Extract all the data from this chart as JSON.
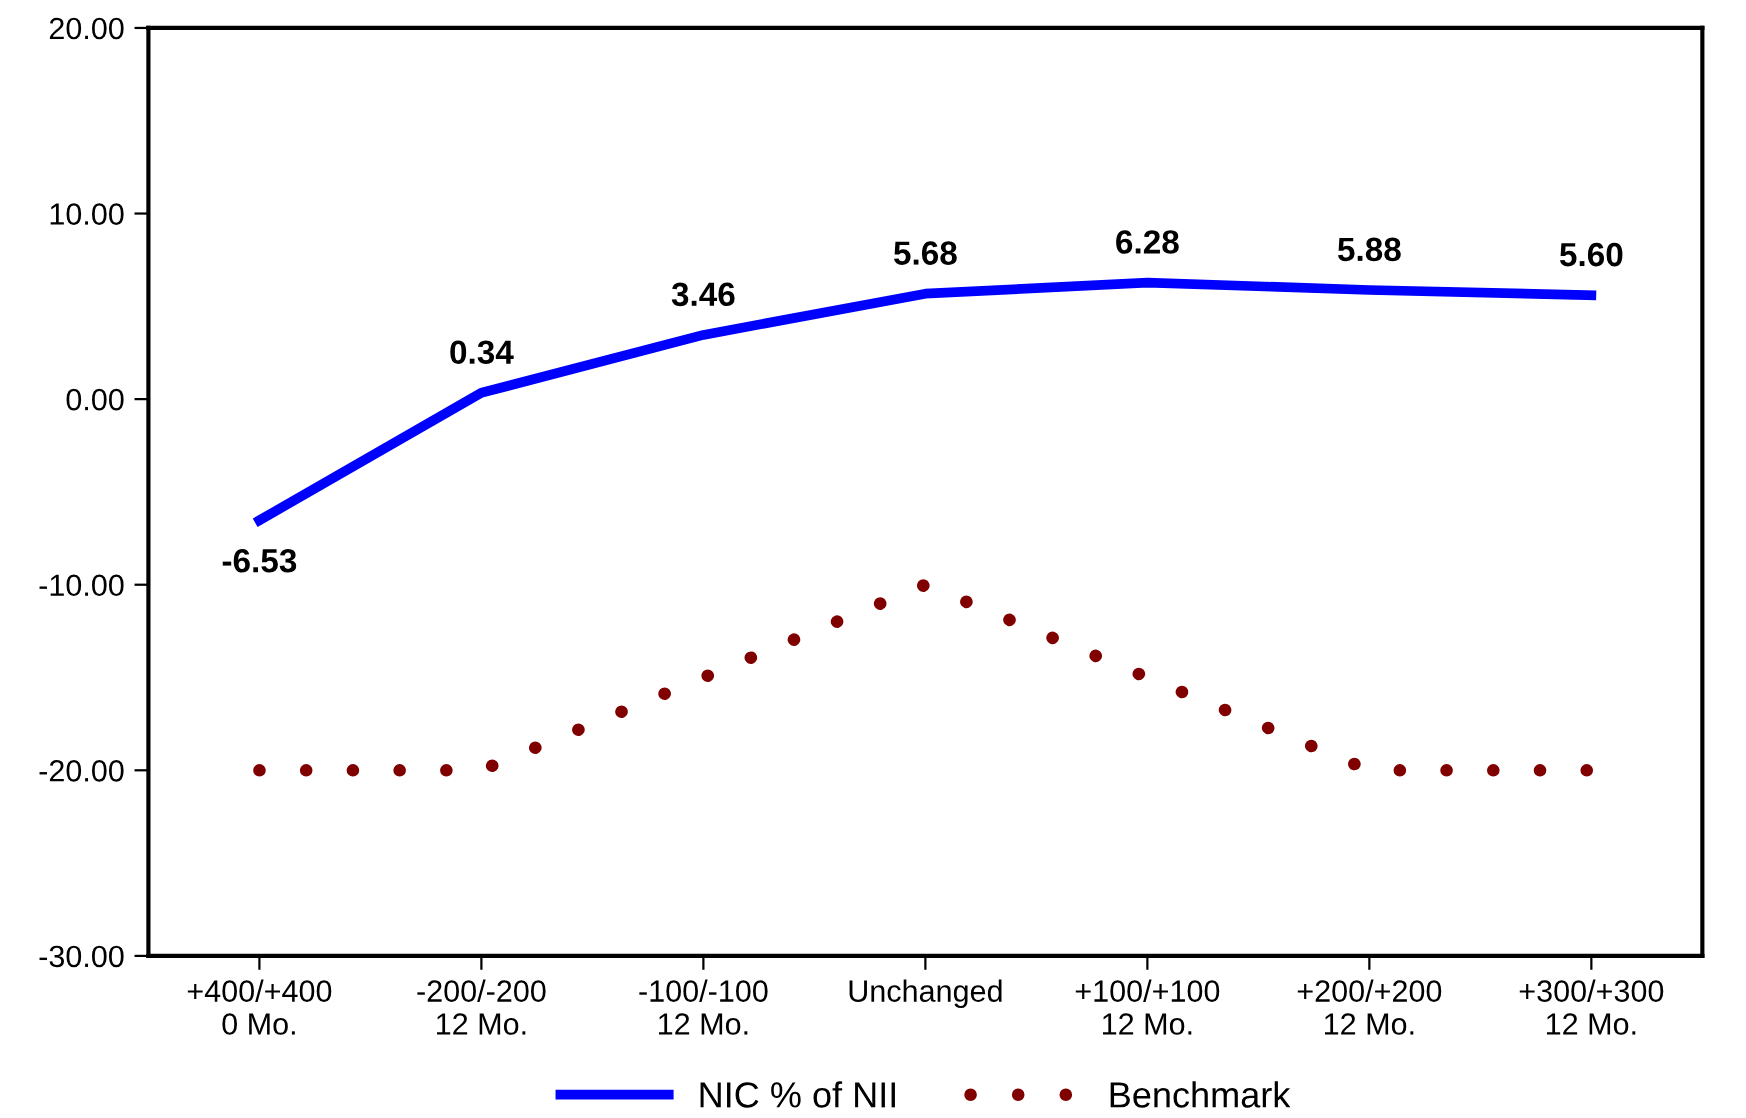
{
  "chart_data": {
    "type": "line",
    "categories": [
      "+400/+400\n0 Mo.",
      "-200/-200\n12 Mo.",
      "-100/-100\n12 Mo.",
      "Unchanged",
      "+100/+100\n12 Mo.",
      "+200/+200\n12 Mo.",
      "+300/+300\n12 Mo."
    ],
    "series": [
      {
        "name": "NIC % of NII",
        "color": "#0000ff",
        "values": [
          -6.53,
          0.34,
          3.46,
          5.68,
          6.28,
          5.88,
          5.6
        ],
        "value_labels": [
          "-6.53",
          "0.34",
          "3.46",
          "5.68",
          "6.28",
          "5.88",
          "5.60"
        ],
        "line_style": "solid"
      },
      {
        "name": "Benchmark",
        "color": "#800000",
        "values": [
          -20,
          -20,
          -15,
          -10,
          -15,
          -20,
          -20
        ],
        "line_style": "dotted"
      }
    ],
    "ylim": [
      -30,
      20
    ],
    "yticks": [
      {
        "value": -30,
        "label": "-30.00"
      },
      {
        "value": -20,
        "label": "-20.00"
      },
      {
        "value": -10,
        "label": "-10.00"
      },
      {
        "value": 0,
        "label": "0.00"
      },
      {
        "value": 10,
        "label": "10.00"
      },
      {
        "value": 20,
        "label": "20.00"
      }
    ],
    "grid": false,
    "legend": "bottom"
  }
}
